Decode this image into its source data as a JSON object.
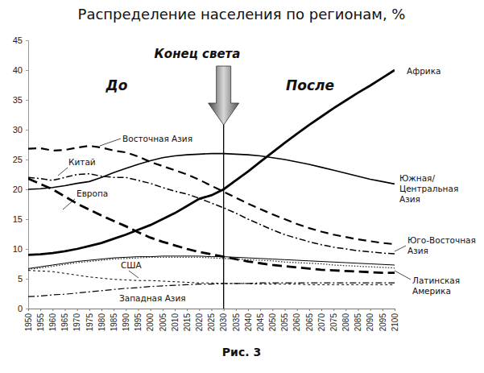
{
  "chart_data": {
    "type": "line",
    "title": "Распределение населения по регионам, %",
    "annotations": [
      {
        "text": "Конец света",
        "x": 2030
      },
      {
        "text": "До"
      },
      {
        "text": "После"
      },
      {
        "text": "Рис. 3"
      }
    ],
    "x": [
      1950,
      1955,
      1960,
      1965,
      1970,
      1975,
      1980,
      1985,
      1990,
      1995,
      2000,
      2005,
      2010,
      2015,
      2020,
      2025,
      2030,
      2035,
      2040,
      2045,
      2050,
      2055,
      2060,
      2065,
      2070,
      2075,
      2080,
      2085,
      2090,
      2095,
      2100
    ],
    "xlim": [
      1950,
      2100
    ],
    "xticks": [
      1950,
      1955,
      1960,
      1965,
      1970,
      1975,
      1980,
      1985,
      1990,
      1995,
      2000,
      2005,
      2010,
      2015,
      2020,
      2025,
      2030,
      2035,
      2040,
      2045,
      2050,
      2055,
      2060,
      2065,
      2070,
      2075,
      2080,
      2085,
      2090,
      2095,
      2100
    ],
    "ylim": [
      0,
      45
    ],
    "yticks": [
      0,
      5,
      10,
      15,
      20,
      25,
      30,
      35,
      40,
      45
    ],
    "grid": false,
    "series": [
      {
        "name": "Африка",
        "color": "#000000",
        "line_style": "solid",
        "values": [
          9.0,
          9.1,
          9.3,
          9.6,
          10.0,
          10.5,
          11.0,
          11.7,
          12.4,
          13.2,
          14.0,
          15.0,
          16.0,
          17.2,
          18.4,
          19.0,
          20.0,
          21.5,
          23.0,
          24.6,
          26.2,
          27.8,
          29.3,
          30.8,
          32.2,
          33.6,
          34.9,
          36.2,
          37.4,
          38.7,
          40.0
        ]
      },
      {
        "name": "Южная/Центральная Азия",
        "color": "#000000",
        "line_style": "solid",
        "values": [
          20.0,
          20.1,
          20.3,
          20.6,
          21.0,
          21.3,
          22.0,
          22.8,
          23.5,
          24.2,
          24.8,
          25.3,
          25.6,
          25.8,
          25.9,
          26.0,
          26.0,
          25.9,
          25.8,
          25.6,
          25.3,
          25.0,
          24.6,
          24.2,
          23.7,
          23.2,
          22.7,
          22.2,
          21.7,
          21.3,
          20.9
        ]
      },
      {
        "name": "Восточная Азия",
        "color": "#000000",
        "line_style": "longdash",
        "values": [
          26.8,
          26.9,
          26.5,
          26.6,
          27.0,
          27.3,
          27.0,
          26.5,
          26.2,
          25.5,
          24.6,
          23.9,
          23.2,
          22.5,
          21.6,
          20.6,
          19.6,
          18.6,
          17.6,
          16.7,
          15.8,
          15.0,
          14.2,
          13.5,
          12.9,
          12.4,
          12.0,
          11.6,
          11.3,
          11.0,
          10.8
        ]
      },
      {
        "name": "Китай",
        "color": "#000000",
        "line_style": "dashdot",
        "values": [
          22.0,
          21.8,
          21.5,
          22.0,
          22.5,
          22.6,
          22.2,
          22.0,
          22.0,
          21.5,
          21.0,
          20.3,
          19.7,
          19.2,
          18.5,
          17.7,
          16.9,
          16.0,
          15.0,
          14.1,
          13.2,
          12.4,
          11.8,
          11.2,
          10.7,
          10.3,
          10.0,
          9.7,
          9.5,
          9.3,
          9.2
        ]
      },
      {
        "name": "Европа",
        "color": "#000000",
        "line_style": "dash",
        "values": [
          21.8,
          20.9,
          20.0,
          18.8,
          17.6,
          16.6,
          15.6,
          14.7,
          13.8,
          12.8,
          11.9,
          11.2,
          10.6,
          10.0,
          9.5,
          9.1,
          8.7,
          8.3,
          7.9,
          7.6,
          7.3,
          7.1,
          6.9,
          6.7,
          6.5,
          6.4,
          6.3,
          6.2,
          6.1,
          6.0,
          6.0
        ]
      },
      {
        "name": "Юго-Восточная Азия",
        "color": "#000000",
        "line_style": "solid",
        "values": [
          6.7,
          7.0,
          7.3,
          7.6,
          7.9,
          8.1,
          8.3,
          8.5,
          8.6,
          8.7,
          8.7,
          8.8,
          8.8,
          8.8,
          8.8,
          8.7,
          8.7,
          8.6,
          8.5,
          8.4,
          8.3,
          8.2,
          8.1,
          8.0,
          7.9,
          7.8,
          7.7,
          7.6,
          7.5,
          7.4,
          7.3
        ]
      },
      {
        "name": "Латинская Америка",
        "color": "#333333",
        "line_style": "dot",
        "values": [
          6.6,
          6.8,
          7.1,
          7.4,
          7.7,
          7.9,
          8.1,
          8.3,
          8.4,
          8.5,
          8.6,
          8.6,
          8.6,
          8.6,
          8.6,
          8.5,
          8.4,
          8.3,
          8.2,
          8.1,
          8.0,
          7.8,
          7.7,
          7.6,
          7.5,
          7.3,
          7.2,
          7.1,
          7.0,
          6.9,
          6.8
        ]
      },
      {
        "name": "США",
        "color": "#000000",
        "line_style": "shortdash",
        "values": [
          6.4,
          6.3,
          6.2,
          5.9,
          5.6,
          5.3,
          5.1,
          4.9,
          4.8,
          4.7,
          4.7,
          4.6,
          4.5,
          4.4,
          4.3,
          4.3,
          4.2,
          4.2,
          4.2,
          4.1,
          4.1,
          4.1,
          4.1,
          4.0,
          4.0,
          4.0,
          4.0,
          4.0,
          4.0,
          4.0,
          4.0
        ]
      },
      {
        "name": "Западная Азия",
        "color": "#000000",
        "line_style": "dashdot",
        "values": [
          2.0,
          2.1,
          2.3,
          2.4,
          2.6,
          2.8,
          3.0,
          3.2,
          3.4,
          3.5,
          3.7,
          3.8,
          3.9,
          4.0,
          4.1,
          4.1,
          4.2,
          4.2,
          4.2,
          4.3,
          4.3,
          4.3,
          4.3,
          4.3,
          4.3,
          4.3,
          4.3,
          4.3,
          4.3,
          4.3,
          4.3
        ]
      }
    ]
  }
}
